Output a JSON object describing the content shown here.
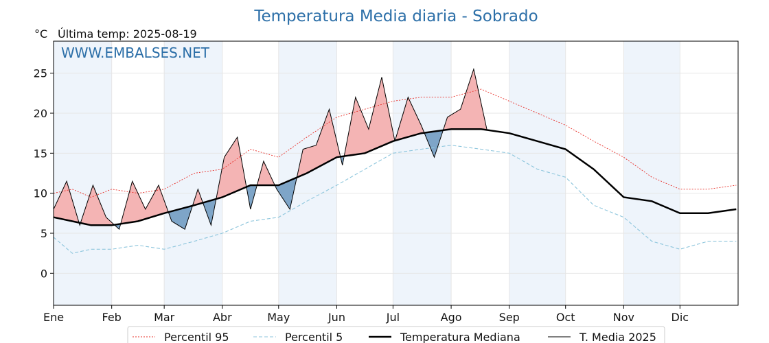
{
  "header": {
    "title": "Temperatura Media diaria - Sobrado",
    "unit": "°C",
    "last_temp": "Última temp: 2025-08-19",
    "watermark": "WWW.EMBALSES.NET"
  },
  "chart_data": {
    "type": "line",
    "title": "Temperatura Media diaria - Sobrado",
    "xlabel": "",
    "ylabel": "°C",
    "xlim": [
      0,
      365
    ],
    "ylim": [
      -4,
      29
    ],
    "yticks": [
      0,
      5,
      10,
      15,
      20,
      25
    ],
    "grid": true,
    "legend_position": "bottom",
    "month_labels": [
      "Ene",
      "Feb",
      "Mar",
      "Abr",
      "May",
      "Jun",
      "Jul",
      "Ago",
      "Sep",
      "Oct",
      "Nov",
      "Dic"
    ],
    "month_starts": [
      0,
      31,
      59,
      90,
      120,
      151,
      181,
      212,
      243,
      273,
      304,
      334
    ],
    "colors": {
      "p95": "#e8302a",
      "p5": "#8cc5dc",
      "median": "#000000",
      "t2025": "#000000",
      "above_fill": "#f4b4b4",
      "below_fill": "#7ea5c8",
      "band_fill": "#eef4fb"
    },
    "series": [
      {
        "name": "Percentil 95",
        "x": [
          0,
          10,
          20,
          31,
          45,
          59,
          75,
          90,
          105,
          120,
          135,
          151,
          166,
          181,
          196,
          212,
          228,
          243,
          258,
          273,
          288,
          304,
          319,
          334,
          349,
          364
        ],
        "values": [
          10.0,
          10.5,
          9.5,
          10.5,
          10.0,
          10.5,
          12.5,
          13.0,
          15.5,
          14.5,
          17.0,
          19.5,
          20.5,
          21.5,
          22.0,
          22.0,
          23.0,
          21.5,
          20.0,
          18.5,
          16.5,
          14.5,
          12.0,
          10.5,
          10.5,
          11.0
        ]
      },
      {
        "name": "Percentil 5",
        "x": [
          0,
          10,
          20,
          31,
          45,
          59,
          75,
          90,
          105,
          120,
          135,
          151,
          166,
          181,
          196,
          212,
          228,
          243,
          258,
          273,
          288,
          304,
          319,
          334,
          349,
          364
        ],
        "values": [
          4.5,
          2.5,
          3.0,
          3.0,
          3.5,
          3.0,
          4.0,
          5.0,
          6.5,
          7.0,
          9.0,
          11.0,
          13.0,
          15.0,
          15.5,
          16.0,
          15.5,
          15.0,
          13.0,
          12.0,
          8.5,
          7.0,
          4.0,
          3.0,
          4.0,
          4.0
        ]
      },
      {
        "name": "Temperatura Mediana",
        "x": [
          0,
          10,
          20,
          31,
          45,
          59,
          75,
          90,
          105,
          120,
          135,
          151,
          166,
          181,
          196,
          212,
          228,
          243,
          258,
          273,
          288,
          304,
          319,
          334,
          349,
          364
        ],
        "values": [
          7.0,
          6.5,
          6.0,
          6.0,
          6.5,
          7.5,
          8.5,
          9.5,
          11.0,
          11.0,
          12.5,
          14.5,
          15.0,
          16.5,
          17.5,
          18.0,
          18.0,
          17.5,
          16.5,
          15.5,
          13.0,
          9.5,
          9.0,
          7.5,
          7.5,
          8.0
        ]
      },
      {
        "name": "T. Media 2025",
        "x": [
          0,
          7,
          14,
          21,
          28,
          35,
          42,
          49,
          56,
          63,
          70,
          77,
          84,
          91,
          98,
          105,
          112,
          119,
          126,
          133,
          140,
          147,
          154,
          161,
          168,
          175,
          182,
          189,
          196,
          203,
          210,
          217,
          224,
          231
        ],
        "values": [
          8.0,
          11.5,
          6.0,
          11.0,
          7.0,
          5.5,
          11.5,
          8.0,
          11.0,
          6.5,
          5.5,
          10.5,
          6.0,
          14.5,
          17.0,
          8.0,
          14.0,
          10.5,
          8.0,
          15.5,
          16.0,
          20.5,
          13.5,
          22.0,
          18.0,
          24.5,
          16.5,
          22.0,
          18.5,
          14.5,
          19.5,
          20.5,
          25.5,
          18.0
        ]
      }
    ]
  }
}
